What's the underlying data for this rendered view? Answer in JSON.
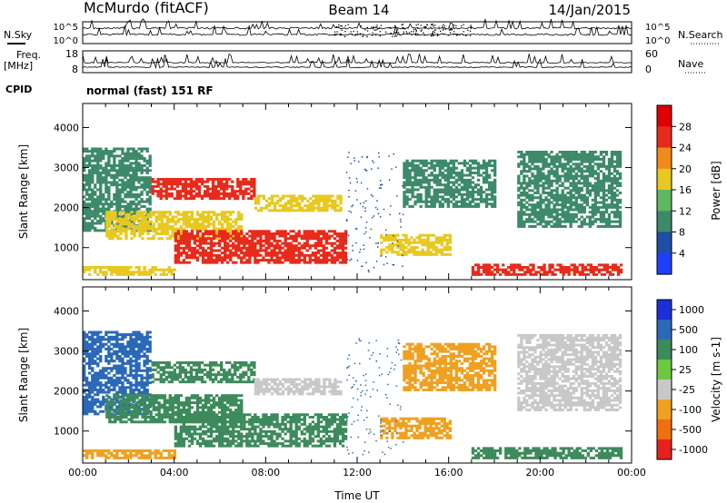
{
  "header": {
    "station": "McMurdo (fitACF)",
    "beam": "Beam 14",
    "date": "14/Jan/2015"
  },
  "noise_panel": {
    "left_label": "N.Sky",
    "right_label": "N.Search",
    "top_tick": "10^5",
    "bottom_tick": "10^0",
    "right_top_tick": "10^5",
    "right_bottom_tick": "10^0"
  },
  "freq_panel": {
    "left_label_line1": "Freq.",
    "left_label_line2": "[MHz]",
    "left_top_tick": "18",
    "left_bottom_tick": "8",
    "right_label": "Nave",
    "right_top_tick": "60",
    "right_bottom_tick": "0"
  },
  "cpid": {
    "label": "CPID",
    "value": "normal (fast) 151 RF"
  },
  "chart_data": [
    {
      "type": "heatmap",
      "panel": "power",
      "ylabel": "Slant Range [km]",
      "ylim": [
        200,
        4600
      ],
      "yticks": [
        "1000",
        "2000",
        "3000",
        "4000"
      ],
      "ytick_values": [
        1000,
        2000,
        3000,
        4000
      ],
      "colorbar_label": "Power [dB]",
      "colorbar_ticks": [
        "4",
        "8",
        "12",
        "16",
        "20",
        "24",
        "28"
      ],
      "colorbar_colors": [
        "#1f3fff",
        "#1f4da8",
        "#3c8a6a",
        "#5fb85f",
        "#e8c820",
        "#f08a1c",
        "#e82a1a",
        "#e00000"
      ],
      "regions": [
        {
          "t0": 0.0,
          "t1": 3.0,
          "r0": 1400,
          "r1": 3500,
          "level": 8
        },
        {
          "t0": 3.0,
          "t1": 7.5,
          "r0": 2200,
          "r1": 2700,
          "level": 24
        },
        {
          "t0": 7.5,
          "t1": 11.3,
          "r0": 1900,
          "r1": 2300,
          "level": 16
        },
        {
          "t0": 1.0,
          "t1": 7.0,
          "r0": 1200,
          "r1": 1900,
          "level": 16
        },
        {
          "t0": 4.0,
          "t1": 11.5,
          "r0": 600,
          "r1": 1400,
          "level": 24
        },
        {
          "t0": 0.0,
          "t1": 4.0,
          "r0": 300,
          "r1": 500,
          "level": 16
        },
        {
          "t0": 13.0,
          "t1": 16.0,
          "r0": 800,
          "r1": 1300,
          "level": 16
        },
        {
          "t0": 14.0,
          "t1": 18.0,
          "r0": 2000,
          "r1": 3200,
          "level": 8
        },
        {
          "t0": 17.0,
          "t1": 23.5,
          "r0": 300,
          "r1": 600,
          "level": 24
        },
        {
          "t0": 19.0,
          "t1": 23.5,
          "r0": 1500,
          "r1": 3400,
          "level": 8
        }
      ]
    },
    {
      "type": "heatmap",
      "panel": "velocity",
      "ylabel": "Slant Range [km]",
      "ylim": [
        200,
        4600
      ],
      "yticks": [
        "1000",
        "2000",
        "3000",
        "4000"
      ],
      "ytick_values": [
        1000,
        2000,
        3000,
        4000
      ],
      "xlabel": "Time UT",
      "xticks": [
        "00:00",
        "04:00",
        "08:00",
        "12:00",
        "16:00",
        "20:00",
        "00:00"
      ],
      "xtick_hours": [
        0,
        4,
        8,
        12,
        16,
        20,
        24
      ],
      "colorbar_label": "Velocity [m s-1]",
      "colorbar_ticks": [
        "1000",
        "500",
        "100",
        "25",
        "-25",
        "-100",
        "-500",
        "-1000"
      ],
      "colorbar_colors": [
        "#1a2fd8",
        "#2a68b8",
        "#3d8a5c",
        "#6cc83c",
        "#c8c8c8",
        "#f0a020",
        "#f07010",
        "#e82020"
      ],
      "regions": [
        {
          "t0": 0.0,
          "t1": 3.0,
          "r0": 1400,
          "r1": 3500,
          "level": 500
        },
        {
          "t0": 3.0,
          "t1": 7.5,
          "r0": 2200,
          "r1": 2700,
          "level": 100
        },
        {
          "t0": 7.5,
          "t1": 11.3,
          "r0": 1900,
          "r1": 2300,
          "level": 0
        },
        {
          "t0": 1.0,
          "t1": 7.0,
          "r0": 1200,
          "r1": 1900,
          "level": 100
        },
        {
          "t0": 4.0,
          "t1": 11.5,
          "r0": 600,
          "r1": 1400,
          "level": 100
        },
        {
          "t0": 0.0,
          "t1": 4.0,
          "r0": 300,
          "r1": 500,
          "level": -100
        },
        {
          "t0": 13.0,
          "t1": 16.0,
          "r0": 800,
          "r1": 1300,
          "level": -100
        },
        {
          "t0": 14.0,
          "t1": 18.0,
          "r0": 2000,
          "r1": 3200,
          "level": -100
        },
        {
          "t0": 17.0,
          "t1": 23.5,
          "r0": 300,
          "r1": 600,
          "level": 100
        },
        {
          "t0": 19.0,
          "t1": 23.5,
          "r0": 1500,
          "r1": 3400,
          "level": 0
        }
      ]
    }
  ]
}
